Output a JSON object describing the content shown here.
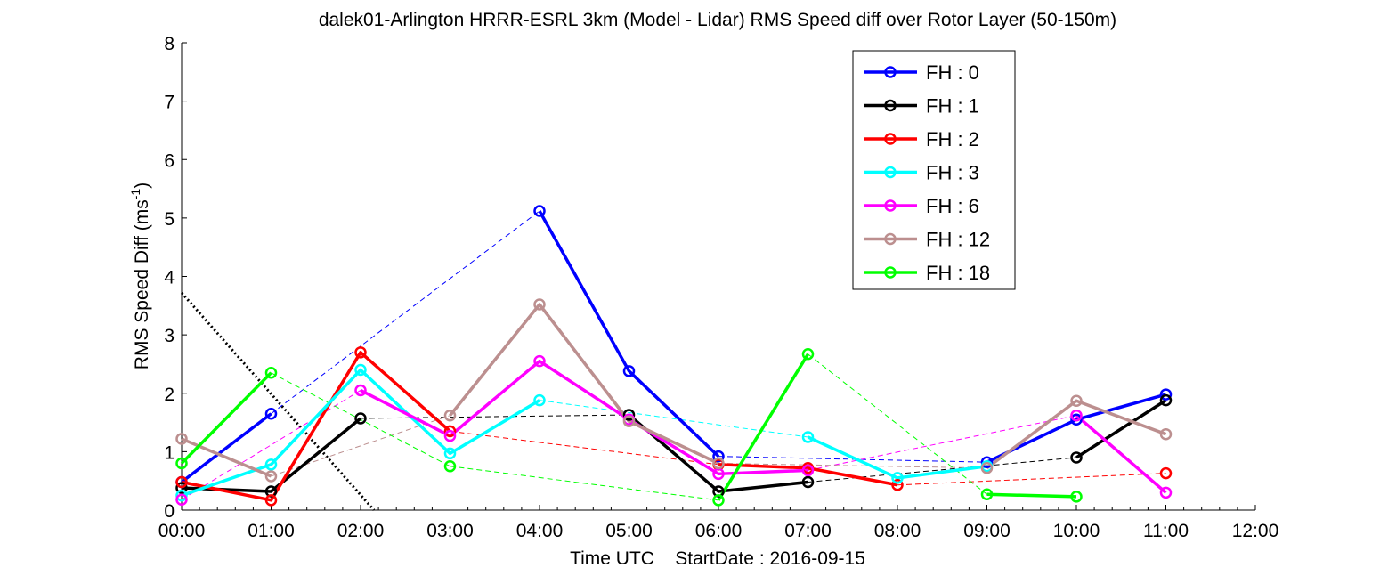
{
  "chart_data": {
    "type": "line",
    "title": "dalek01-Arlington HRRR-ESRL 3km (Model - Lidar) RMS Speed diff over Rotor Layer (50-150m)",
    "xlabel": "Time UTC    StartDate : 2016-09-15",
    "ylabel_main": "RMS Speed Diff (ms",
    "ylabel_sup": "-1",
    "ylabel_close": ")",
    "x_tick_labels": [
      "00:00",
      "01:00",
      "02:00",
      "03:00",
      "04:00",
      "05:00",
      "06:00",
      "07:00",
      "08:00",
      "09:00",
      "10:00",
      "11:00",
      "12:00"
    ],
    "y_tick_labels": [
      "0",
      "1",
      "2",
      "3",
      "4",
      "5",
      "6",
      "7",
      "8"
    ],
    "xlim": [
      0,
      12
    ],
    "ylim": [
      0,
      8
    ],
    "grid": false,
    "legend_position": "top-right",
    "series": [
      {
        "name": "FH : 0",
        "color": "#0000ff",
        "values": [
          0.48,
          1.65,
          null,
          null,
          5.12,
          2.38,
          0.92,
          null,
          null,
          0.82,
          1.55,
          1.98
        ]
      },
      {
        "name": "FH : 1",
        "color": "#000000",
        "values": [
          0.38,
          0.32,
          1.57,
          null,
          null,
          1.63,
          0.32,
          0.48,
          null,
          null,
          0.9,
          1.88
        ]
      },
      {
        "name": "FH : 2",
        "color": "#ff0000",
        "values": [
          0.48,
          0.17,
          2.7,
          1.35,
          null,
          null,
          0.78,
          0.72,
          0.43,
          null,
          null,
          0.63
        ]
      },
      {
        "name": "FH : 3",
        "color": "#00ffff",
        "values": [
          0.25,
          0.78,
          2.4,
          0.97,
          1.88,
          null,
          null,
          1.25,
          0.55,
          0.75,
          null,
          null
        ]
      },
      {
        "name": "FH : 6",
        "color": "#ff00ff",
        "values": [
          0.18,
          null,
          2.05,
          1.27,
          2.55,
          1.55,
          0.62,
          0.68,
          null,
          null,
          1.62,
          0.3
        ]
      },
      {
        "name": "FH : 12",
        "color": "#bc8f8f",
        "values": [
          1.22,
          0.58,
          null,
          1.62,
          3.52,
          1.52,
          0.8,
          null,
          null,
          0.72,
          1.87,
          1.3
        ]
      },
      {
        "name": "FH : 18",
        "color": "#00ff00",
        "values": [
          0.8,
          2.35,
          null,
          0.75,
          null,
          null,
          0.17,
          2.67,
          null,
          0.27,
          0.23,
          null
        ]
      }
    ],
    "reference_line": {
      "color": "#000000",
      "style": "dotted",
      "x": [
        0,
        2.15
      ],
      "y": [
        3.72,
        0
      ]
    }
  }
}
